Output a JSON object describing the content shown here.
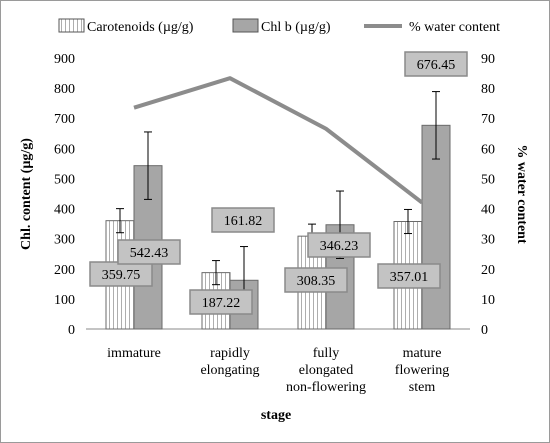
{
  "chart_data": {
    "type": "bar",
    "categories": [
      [
        "immature"
      ],
      [
        "rapidly",
        "elongating"
      ],
      [
        "fully",
        "elongated",
        "non-flowering"
      ],
      [
        "mature",
        "flowering",
        "stem"
      ]
    ],
    "xlabel": "stage",
    "ylabel": "Chl. content (µg/g)",
    "y2label": "% water content",
    "ylim": [
      0,
      900
    ],
    "yticks": [
      "0",
      "100",
      "200",
      "300",
      "400",
      "500",
      "600",
      "700",
      "800",
      "900"
    ],
    "y2lim": [
      0,
      90
    ],
    "y2ticks": [
      "0",
      "10",
      "20",
      "30",
      "40",
      "50",
      "60",
      "70",
      "80",
      "90"
    ],
    "legend_position": "top",
    "series": [
      {
        "name": "Carotenoids (µg/g)",
        "kind": "bar",
        "color": "#ffffff",
        "values": [
          359.75,
          187.22,
          308.35,
          357.01
        ],
        "error": [
          40,
          40,
          40,
          40
        ],
        "labels": [
          "359.75",
          "187.22",
          "308.35",
          "357.01"
        ]
      },
      {
        "name": "Chl b (µg/g)",
        "kind": "bar",
        "color": "#a6a6a6",
        "values": [
          542.43,
          161.82,
          346.23,
          676.45
        ],
        "error": [
          112,
          112,
          112,
          112
        ],
        "labels": [
          "542.43",
          "161.82",
          "346.23",
          "676.45"
        ]
      },
      {
        "name": "% water content",
        "kind": "line",
        "axis": "right",
        "color": "#8c8c8c",
        "values": [
          73.5,
          83.3,
          66.5,
          42
        ]
      }
    ]
  }
}
